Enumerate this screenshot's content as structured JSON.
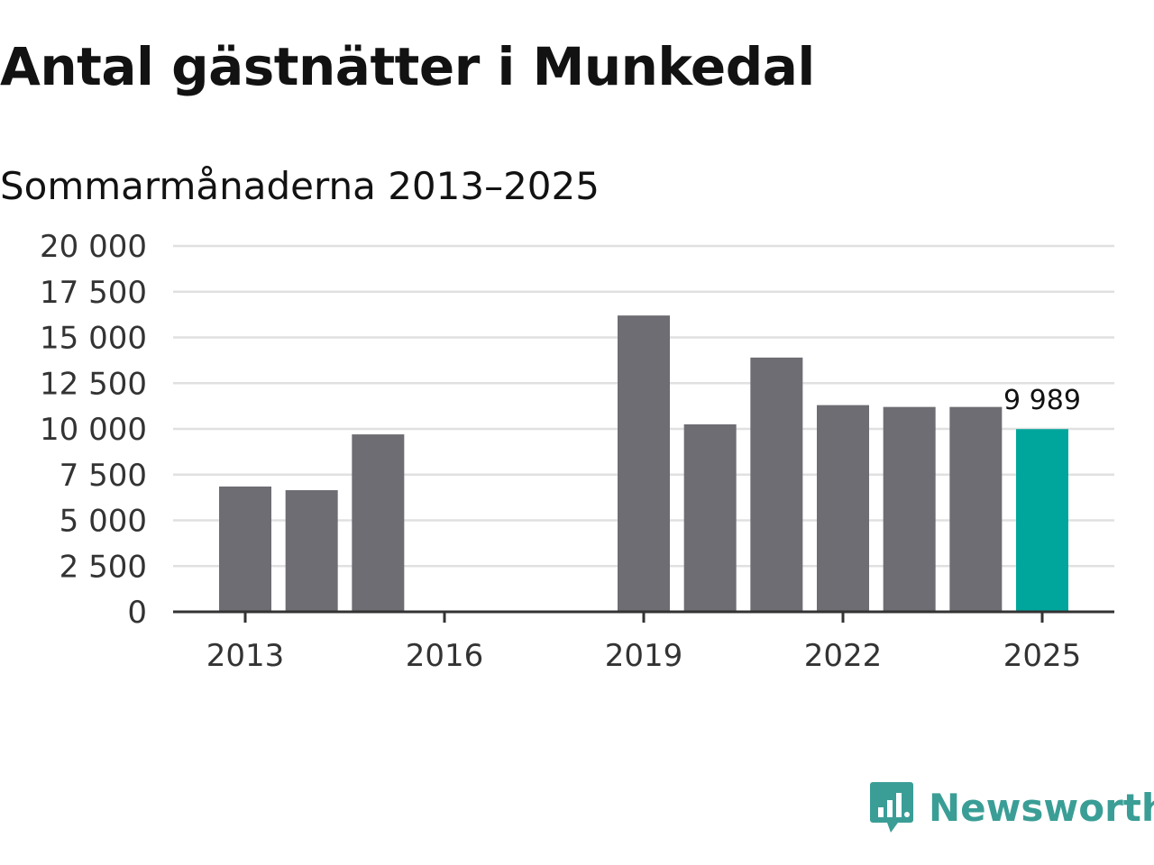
{
  "header": {
    "title": "Antal gästnätter i Munkedal",
    "subtitle": "Sommarmånaderna 2013–2025"
  },
  "brand": {
    "name": "Newsworthy",
    "color": "#3a9e96",
    "icon": "newsworthy-logo-icon"
  },
  "colors": {
    "bar": "#6e6d73",
    "highlight": "#00a69c",
    "grid": "#e0e0e0",
    "axis": "#333333"
  },
  "chart_data": {
    "type": "bar",
    "title": "Antal gästnätter i Munkedal",
    "subtitle": "Sommarmånaderna 2013–2025",
    "xlabel": "",
    "ylabel": "",
    "categories": [
      2013,
      2014,
      2015,
      2016,
      2017,
      2018,
      2019,
      2020,
      2021,
      2022,
      2023,
      2024,
      2025
    ],
    "values": [
      6850,
      6650,
      9700,
      null,
      null,
      null,
      16200,
      10250,
      13900,
      11300,
      11200,
      11200,
      9989
    ],
    "highlight_index": 12,
    "data_labels": [
      {
        "category": 2025,
        "text": "9 989"
      }
    ],
    "ylim": [
      0,
      20000
    ],
    "y_ticks": [
      0,
      2500,
      5000,
      7500,
      10000,
      12500,
      15000,
      17500,
      20000
    ],
    "y_tick_labels": [
      "0",
      "2 500",
      "5 000",
      "7 500",
      "10 000",
      "12 500",
      "15 000",
      "17 500",
      "20 000"
    ],
    "x_ticks": [
      2013,
      2016,
      2019,
      2022,
      2025
    ],
    "x_tick_labels": [
      "2013",
      "2016",
      "2019",
      "2022",
      "2025"
    ],
    "grid": true,
    "legend": "none"
  }
}
